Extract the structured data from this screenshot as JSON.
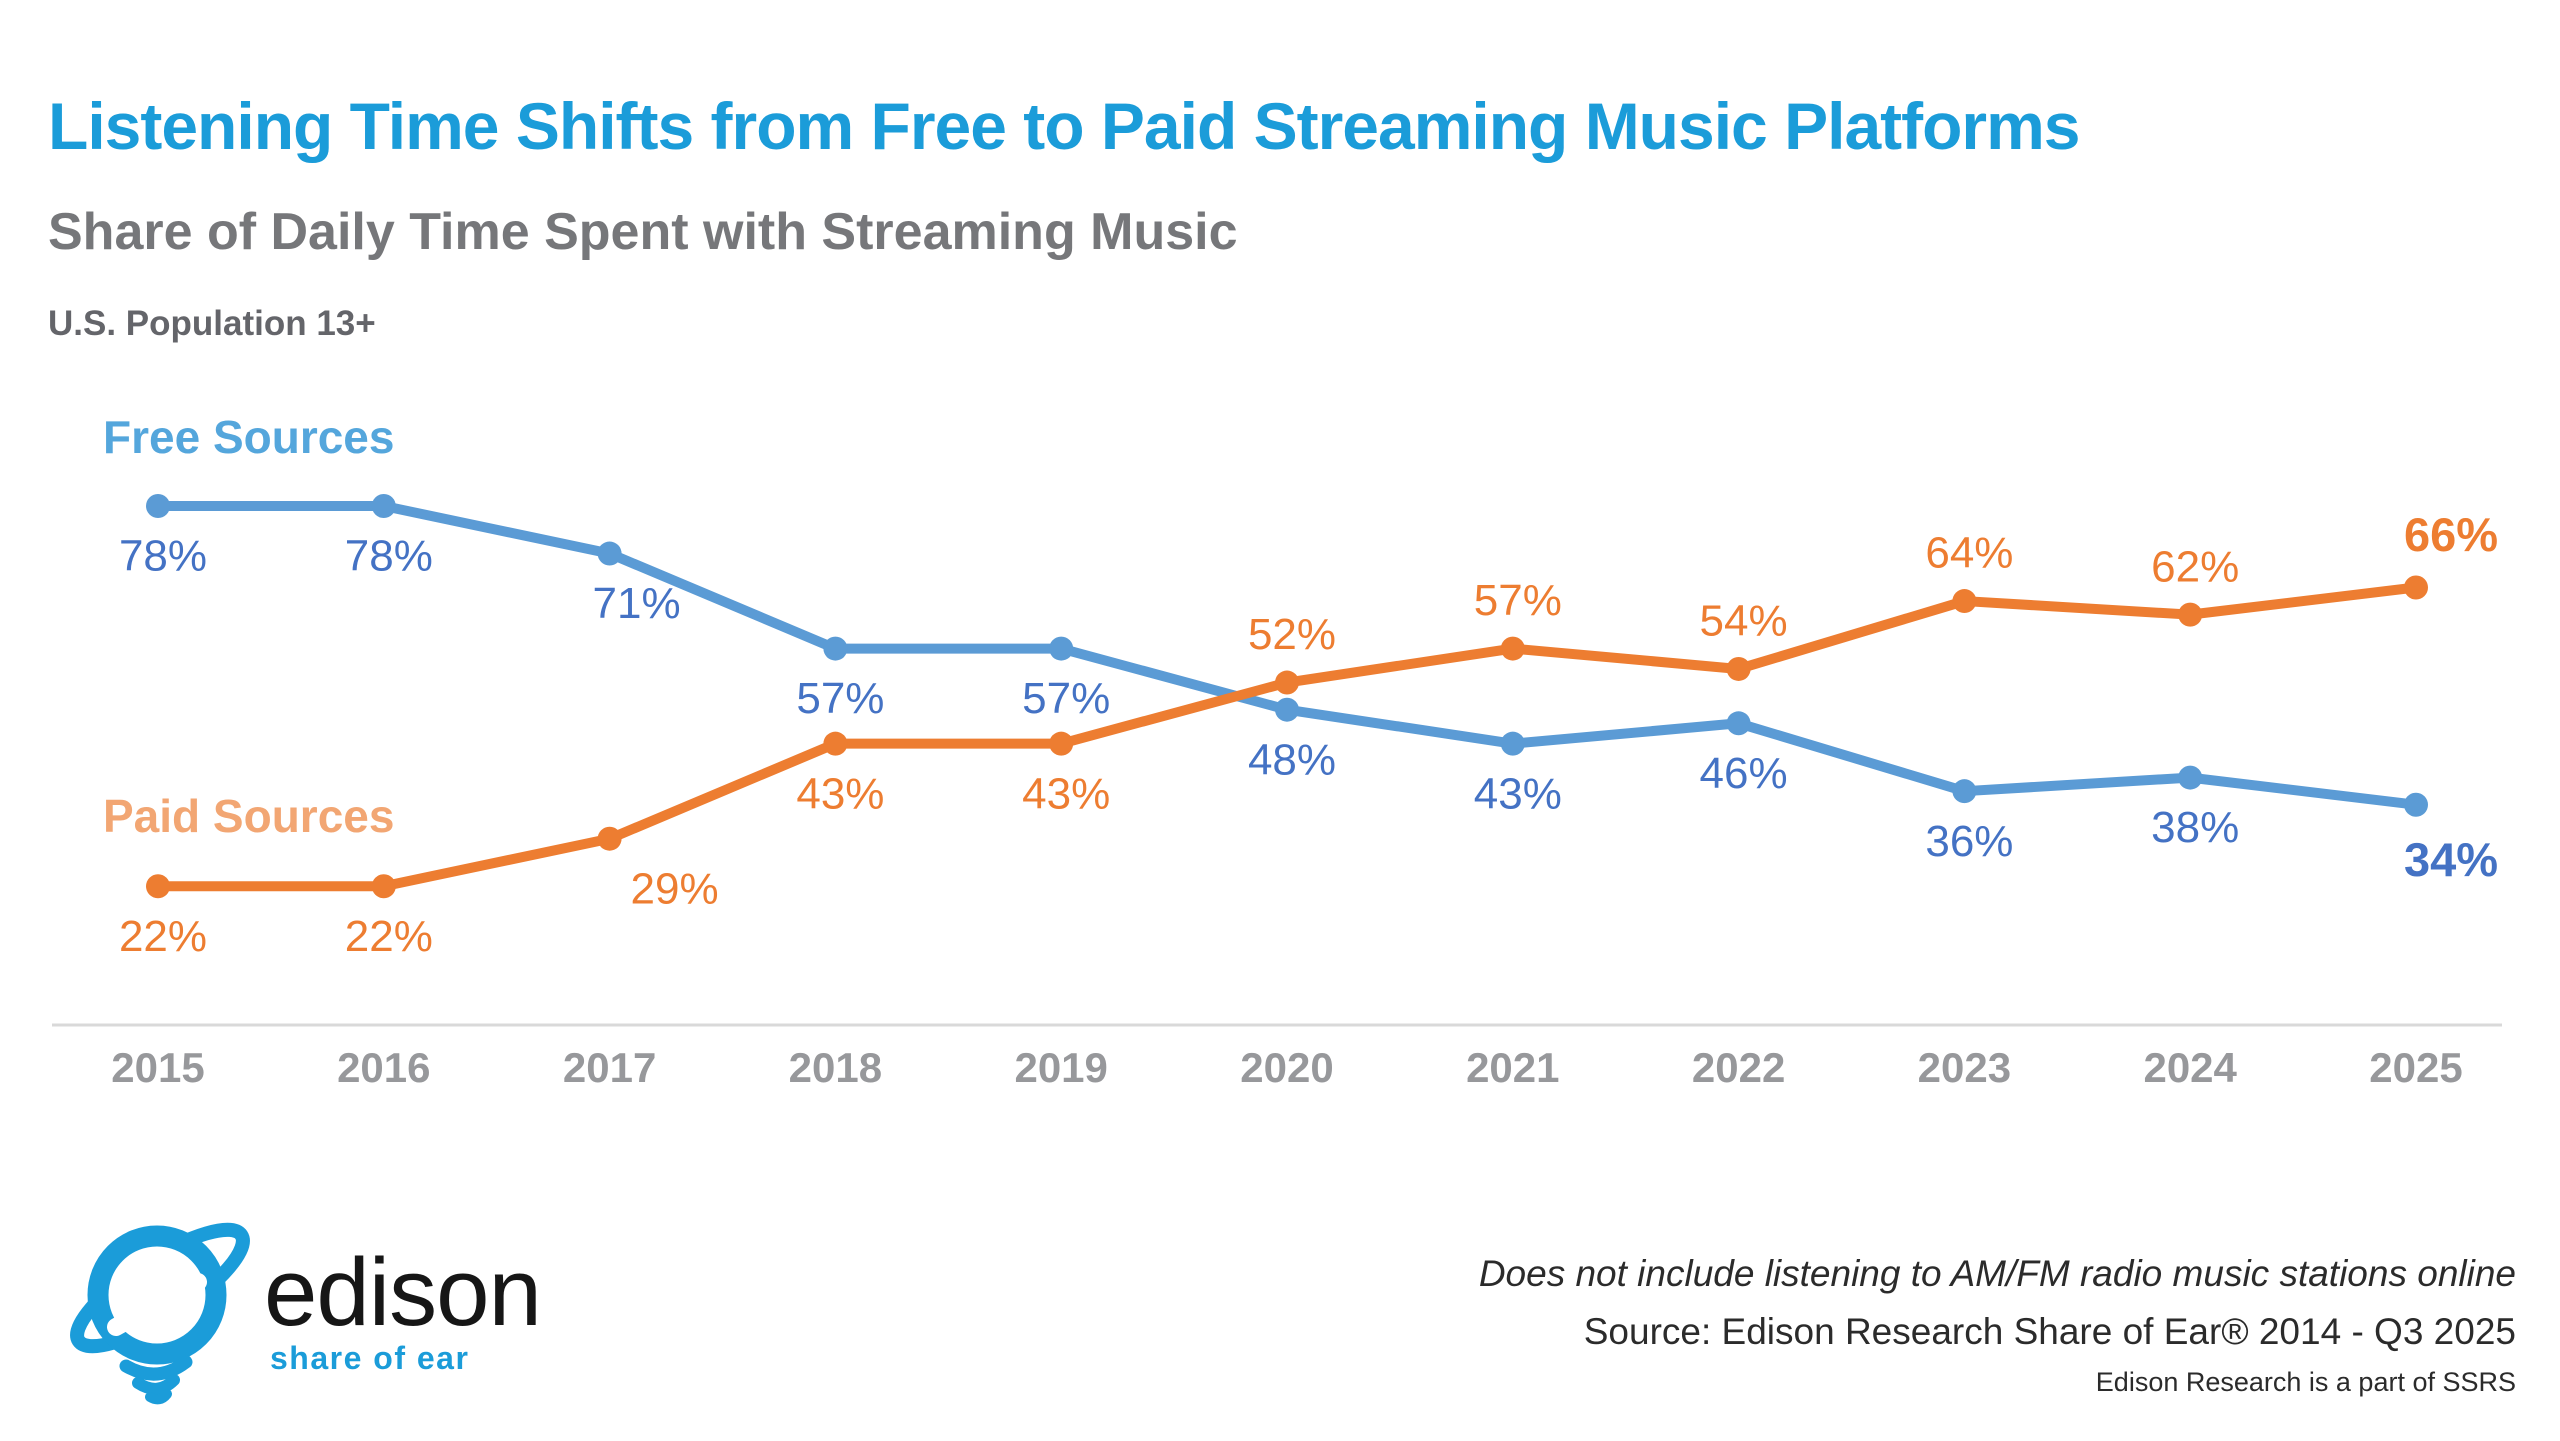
{
  "header": {
    "title": "Listening Time Shifts from Free to Paid Streaming Music Platforms",
    "subtitle": "Share of Daily Time Spent with Streaming Music",
    "population": "U.S. Population 13+"
  },
  "colors": {
    "title_blue": "#1b9cd9",
    "free_line": "#5b9bd5",
    "free_label": "#4472c4",
    "free_name": "#54a6dc",
    "paid_orange": "#ed7d31",
    "paid_name": "#f2a673",
    "axis_gray": "#d9d9d9",
    "tick_gray": "#97989b",
    "logo_blue": "#1b9cd9"
  },
  "chart_data": {
    "type": "line",
    "x": [
      "2015",
      "2016",
      "2017",
      "2018",
      "2019",
      "2020",
      "2021",
      "2022",
      "2023",
      "2024",
      "2025"
    ],
    "series": [
      {
        "name": "Free Sources",
        "values": [
          78,
          78,
          71,
          57,
          57,
          48,
          43,
          46,
          36,
          38,
          34
        ],
        "line_color": "#5b9bd5",
        "label_color": "#4472c4",
        "name_color": "#54a6dc",
        "label_sides": [
          "below",
          "below",
          "below",
          "below",
          "below",
          "below",
          "below",
          "below",
          "below",
          "below",
          "below"
        ]
      },
      {
        "name": "Paid Sources",
        "values": [
          22,
          22,
          29,
          43,
          43,
          52,
          57,
          54,
          64,
          62,
          66
        ],
        "line_color": "#ed7d31",
        "label_color": "#ed7d31",
        "name_color": "#f2a673",
        "label_sides": [
          "below",
          "below",
          "below",
          "below",
          "below",
          "above",
          "above",
          "above",
          "above",
          "above",
          "above"
        ]
      }
    ],
    "value_suffix": "%",
    "ylim": [
      0,
      100
    ],
    "grid": false,
    "legend_position": "inline-left",
    "emphasize_last_value": true,
    "axis_line": true
  },
  "footer": {
    "note": "Does not include listening to AM/FM radio music stations online",
    "source": "Source: Edison Research Share of Ear® 2014 - Q3 2025",
    "affiliation": "Edison Research is a part of SSRS",
    "logo": {
      "word": "edison",
      "tagline": "share of ear"
    }
  }
}
